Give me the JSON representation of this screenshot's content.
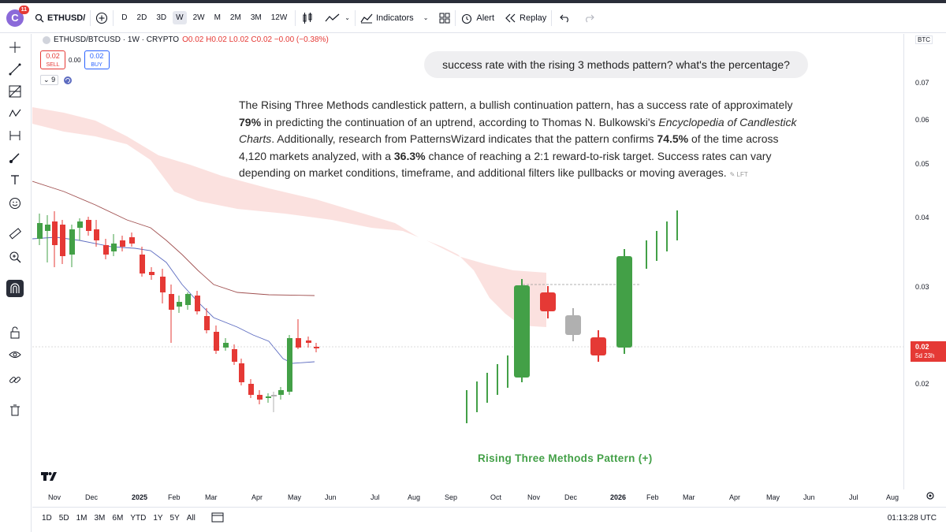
{
  "topbar": {
    "logo_letter": "C",
    "notification_count": "11",
    "symbol": "ETHUSD/",
    "timeframes": [
      "D",
      "2D",
      "3D",
      "W",
      "2W",
      "M",
      "2M",
      "3M",
      "12W"
    ],
    "active_timeframe": "W",
    "indicators_label": "Indicators",
    "alert_label": "Alert",
    "replay_label": "Replay"
  },
  "legend": {
    "title": "ETHUSD/BTCUSD · 1W · CRYPTO",
    "ohlc": "O0.02 H0.02 L0.02 C0.02 −0.00 (−0.38%)",
    "sell_price": "0.02",
    "sell_label": "SELL",
    "spread": "0.00",
    "buy_price": "0.02",
    "buy_label": "BUY",
    "indicator_count": "9"
  },
  "chat": {
    "question": "success rate with the rising 3 methods pattern? what's the percentage?",
    "answer_p1": "The Rising Three Methods candlestick pattern, a bullish continuation pattern, has a success rate of approximately ",
    "answer_b1": "79%",
    "answer_p2": " in predicting the continuation of an uptrend, according to Thomas N. Bulkowski's ",
    "answer_i1": "Encyclopedia of Candlestick Charts",
    "answer_p3": ". Additionally, research from PatternsWizard indicates that the pattern confirms ",
    "answer_b2": "74.5%",
    "answer_p4": " of the time across 4,120 markets analyzed, with a ",
    "answer_b3": "36.3%",
    "answer_p5": " chance of reaching a 2:1 reward-to-risk target. Success rates can vary depending on market conditions, timeframe, and additional filters like pullbacks or moving averages.",
    "tag": "LFT"
  },
  "pattern_label": "Rising Three Methods Pattern (+)",
  "price_axis": {
    "currency": "BTC",
    "labels": [
      "0.07",
      "0.06",
      "0.05",
      "0.04",
      "0.03",
      "0.02"
    ],
    "current_price": "0.02",
    "countdown": "5d 23h",
    "current_color": "#e53935"
  },
  "time_axis": {
    "labels": [
      "Nov",
      "Dec",
      "2025",
      "Feb",
      "Mar",
      "Apr",
      "May",
      "Jun",
      "Jul",
      "Aug",
      "Sep",
      "Oct",
      "Nov",
      "Dec",
      "2026",
      "Feb",
      "Mar",
      "Apr",
      "May",
      "Jun",
      "Jul",
      "Aug"
    ]
  },
  "bottombar": {
    "ranges": [
      "1D",
      "5D",
      "1M",
      "3M",
      "6M",
      "YTD",
      "1Y",
      "5Y",
      "All"
    ],
    "clock": "01:13:28 UTC"
  },
  "colors": {
    "up": "#43a047",
    "down": "#e53935",
    "neutral": "#b0b0b0",
    "cloud": "#f8c9c4"
  }
}
